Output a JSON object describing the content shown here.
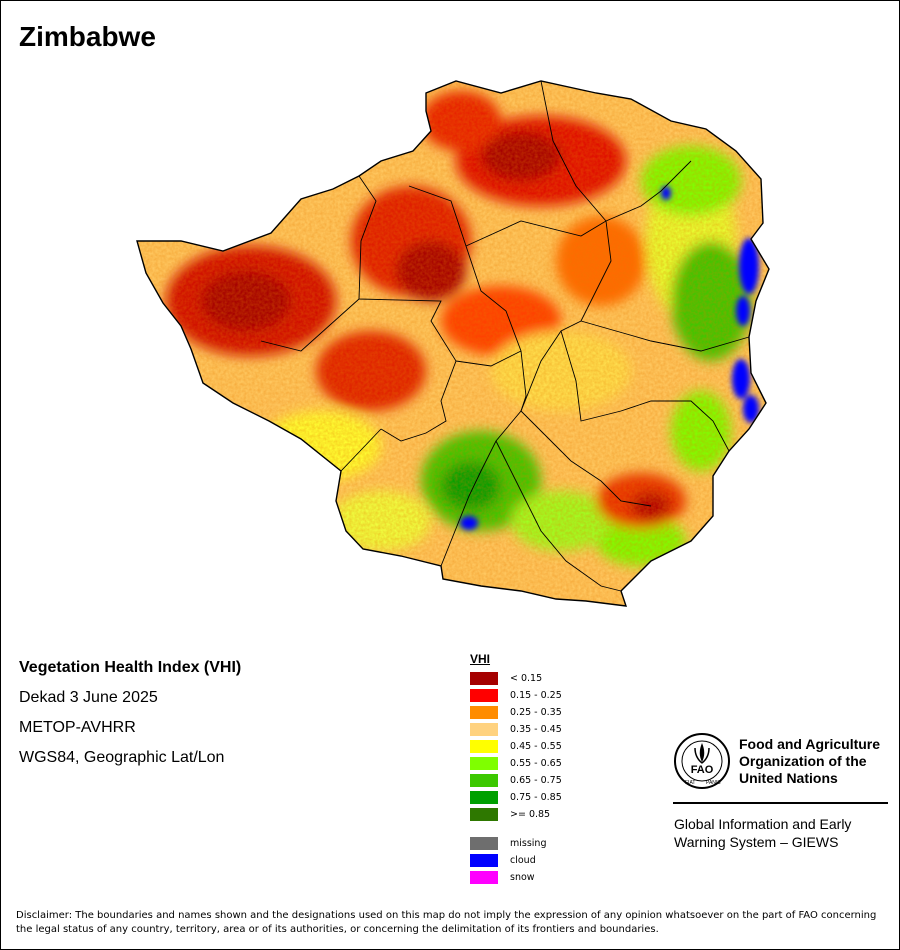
{
  "title": "Zimbabwe",
  "info": {
    "product": "Vegetation Health Index (VHI)",
    "period": "Dekad 3 June 2025",
    "sensor": "METOP-AVHRR",
    "projection": "WGS84, Geographic Lat/Lon"
  },
  "legend": {
    "title": "VHI",
    "classes": [
      {
        "label": "< 0.15",
        "color": "#a50000"
      },
      {
        "label": "0.15 - 0.25",
        "color": "#ff0000"
      },
      {
        "label": "0.25 - 0.35",
        "color": "#ff8c00"
      },
      {
        "label": "0.35 - 0.45",
        "color": "#ffd27f"
      },
      {
        "label": "0.45 - 0.55",
        "color": "#ffff00"
      },
      {
        "label": "0.55 - 0.65",
        "color": "#7fff00"
      },
      {
        "label": "0.65 - 0.75",
        "color": "#3cc800"
      },
      {
        "label": "0.75 - 0.85",
        "color": "#00a000"
      },
      {
        "label": ">= 0.85",
        "color": "#2e7800"
      }
    ],
    "special": [
      {
        "label": "missing",
        "color": "#6e6e6e"
      },
      {
        "label": "cloud",
        "color": "#0000ff"
      },
      {
        "label": "snow",
        "color": "#ff00ff"
      }
    ]
  },
  "branding": {
    "org_name": "Food and Agriculture\nOrganization of the\nUnited Nations",
    "logo_text": "FAO",
    "logo_motto_left": "FIAT",
    "logo_motto_right": "PANIS",
    "system_name": "Global Information and Early\nWarning System – GIEWS"
  },
  "disclaimer": "Disclaimer: The boundaries and names shown and the designations used on this map do not imply the expression of any opinion whatsoever on the part of FAO concerning the legal status of any country, territory, area or of its authorities, or concerning the delimitation of its frontiers and boundaries."
}
